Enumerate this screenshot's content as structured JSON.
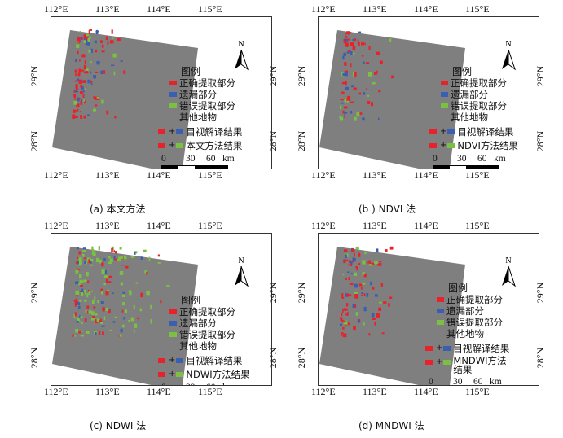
{
  "ticks": {
    "lon": [
      "112°E",
      "113°E",
      "114°E",
      "115°E"
    ],
    "lat": [
      "29°N",
      "28°N"
    ]
  },
  "legend": {
    "title": "图例",
    "items": [
      "正确提取部分",
      "遗漏部分",
      "错误提取部分",
      "其他地物"
    ],
    "visual": "目视解译结果",
    "plus": "+"
  },
  "colors": {
    "correct": "#e8212a",
    "missed": "#3a5fb0",
    "error": "#79c043",
    "other": "#7f7f7f"
  },
  "north_label": "N",
  "scale": {
    "labels": [
      "0",
      "30",
      "60"
    ],
    "unit": "km"
  },
  "panels": [
    {
      "caption": "(a) 本文方法",
      "method_result": "本文方法结果",
      "density": 1
    },
    {
      "caption": "(b ) NDVI 法",
      "method_result": "NDVI方法结果",
      "density": 0.7
    },
    {
      "caption": "(c) NDWI 法",
      "method_result": "NDWI方法结果",
      "density": 1.6
    },
    {
      "caption": "(d) MNDWI 法",
      "method_result": "MNDWI方法结果",
      "density": 0.9
    }
  ]
}
